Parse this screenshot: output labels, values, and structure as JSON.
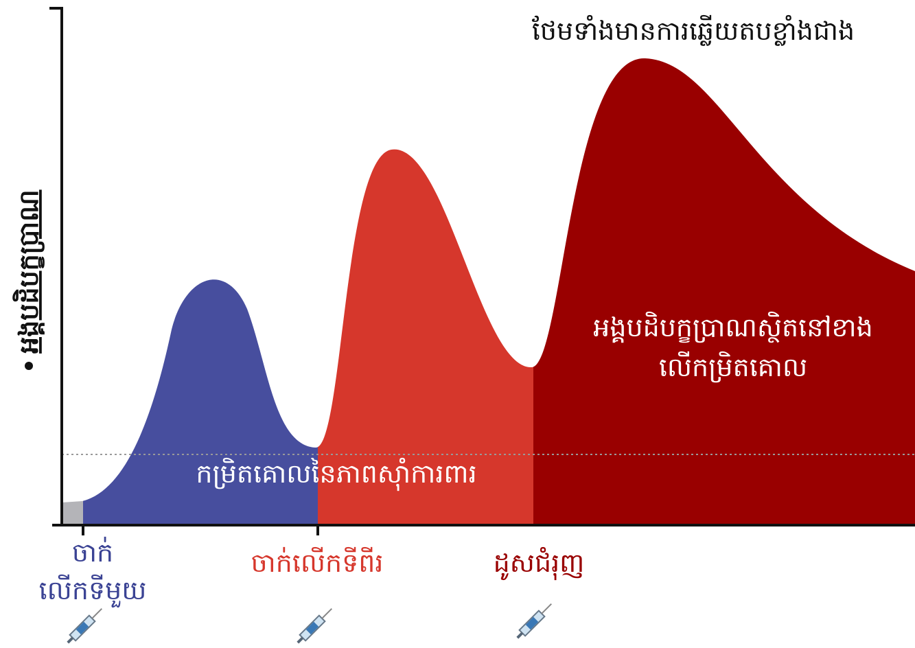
{
  "y_axis_label": "អង្គបដិបក្ខប្រាណ",
  "top_annotation": "ថែមទាំងមានការឆ្លើយតបខ្លាំងជាង",
  "peak_annotation": [
    "អង្គបដិបក្ខប្រាណស្ថិតនៅខាង",
    "លើកម្រិតគោល"
  ],
  "threshold_label": "កម្រិតគោលនៃភាពស៊ាំការពារ",
  "doses": [
    {
      "label": [
        "ចាក់",
        "លើកទីមួយ"
      ]
    },
    {
      "label": [
        "ចាក់លើកទីពីរ"
      ]
    },
    {
      "label": [
        "ដូសជំរុញ"
      ]
    }
  ]
}
